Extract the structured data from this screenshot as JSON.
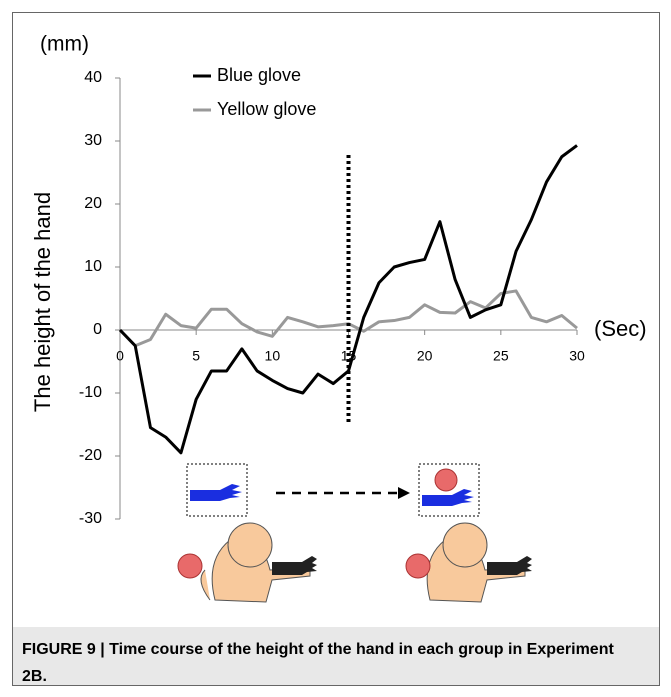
{
  "chart_data": {
    "type": "line",
    "y_unit": "(mm)",
    "x_unit": "(Sec)",
    "y_label": "The height of the hand",
    "caption": "FIGURE 9 | Time course of the height of the hand in each group in Experiment 2B.",
    "x": [
      0,
      1,
      2,
      3,
      4,
      5,
      6,
      7,
      8,
      9,
      10,
      11,
      12,
      13,
      14,
      15,
      16,
      17,
      18,
      19,
      20,
      21,
      22,
      23,
      24,
      25,
      26,
      27,
      28,
      29,
      30
    ],
    "series": [
      {
        "name": "Blue glove",
        "color": "#000000",
        "values": [
          0,
          -2.5,
          -15.5,
          -17,
          -19.5,
          -11,
          -6.5,
          -6.5,
          -3,
          -6.5,
          -8,
          -9.3,
          -10,
          -7,
          -8.5,
          -6.5,
          2,
          7.5,
          10,
          10.7,
          11.2,
          17.2,
          8,
          2,
          3.2,
          4,
          12.5,
          17.5,
          23.5,
          27.5,
          29.3
        ]
      },
      {
        "name": "Yellow glove",
        "color": "#999999",
        "values": [
          0,
          -2.5,
          -1.5,
          2.5,
          0.7,
          0.3,
          3.3,
          3.3,
          1,
          -0.3,
          -1,
          2,
          1.3,
          0.5,
          0.7,
          1,
          -0.2,
          1.3,
          1.5,
          2,
          4,
          2.8,
          2.7,
          4.5,
          3.5,
          5.8,
          6.2,
          2,
          1.3,
          2.3,
          0.3
        ]
      }
    ],
    "xlim": [
      0,
      30
    ],
    "xticks": [
      0,
      5,
      10,
      15,
      20,
      25,
      30
    ],
    "ylim": [
      -30,
      40
    ],
    "yticks": [
      -30,
      -20,
      -10,
      0,
      10,
      20,
      30,
      40
    ],
    "event_x": 15
  }
}
